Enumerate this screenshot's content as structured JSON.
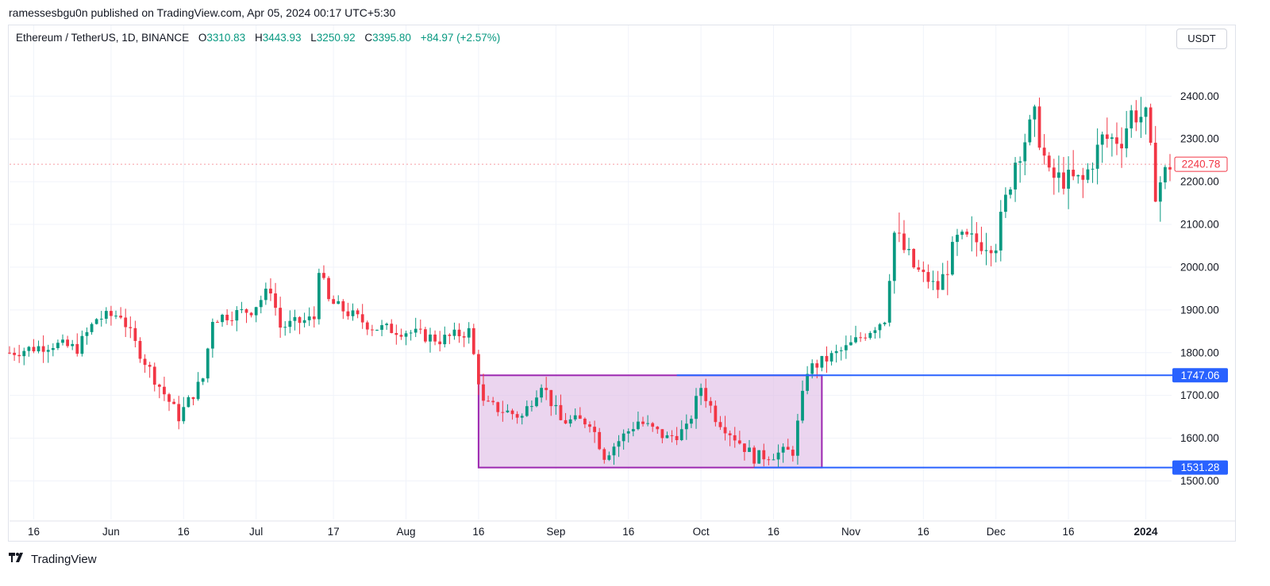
{
  "header": {
    "published_line": "ramessesbgu0n published on TradingView.com, Apr 05, 2024 00:17 UTC+5:30"
  },
  "legend": {
    "symbol": "Ethereum / TetherUS, 1D, BINANCE",
    "o_label": "O",
    "o_value": "3310.83",
    "h_label": "H",
    "h_value": "3443.93",
    "l_label": "L",
    "l_value": "3250.92",
    "c_label": "C",
    "c_value": "3395.80",
    "change": "+84.97 (+2.57%)",
    "up_color": "#089981"
  },
  "currency_button": {
    "label": "USDT"
  },
  "footer": {
    "brand": "TradingView",
    "logo_icon": "tradingview-logo-icon"
  },
  "colors": {
    "up": "#089981",
    "down": "#f23645",
    "box_fill": "#e1bee7",
    "box_border": "#9c27b0",
    "level_line": "#2962ff",
    "grid": "#f0f3fa"
  },
  "chart_data": {
    "type": "candlestick",
    "y_ticks": [
      "1500.00",
      "1600.00",
      "1700.00",
      "1800.00",
      "1900.00",
      "2000.00",
      "2100.00",
      "2200.00",
      "2300.00",
      "2400.00"
    ],
    "ylim": [
      1410,
      2510
    ],
    "x_ticks": [
      {
        "label": "16",
        "date": "2023-05-16"
      },
      {
        "label": "Jun",
        "date": "2023-06-01"
      },
      {
        "label": "16",
        "date": "2023-06-16"
      },
      {
        "label": "Jul",
        "date": "2023-07-01"
      },
      {
        "label": "17",
        "date": "2023-07-17"
      },
      {
        "label": "Aug",
        "date": "2023-08-01"
      },
      {
        "label": "16",
        "date": "2023-08-16"
      },
      {
        "label": "Sep",
        "date": "2023-09-01"
      },
      {
        "label": "16",
        "date": "2023-09-16"
      },
      {
        "label": "Oct",
        "date": "2023-10-01"
      },
      {
        "label": "16",
        "date": "2023-10-16"
      },
      {
        "label": "Nov",
        "date": "2023-11-01"
      },
      {
        "label": "16",
        "date": "2023-11-16"
      },
      {
        "label": "Dec",
        "date": "2023-12-01"
      },
      {
        "label": "16",
        "date": "2023-12-16"
      },
      {
        "label": "2024",
        "date": "2024-01-01",
        "bold": true
      }
    ],
    "start_date": "2023-05-11",
    "end_date": "2024-01-06",
    "key_points": [
      [
        "2023-05-11",
        1800
      ],
      [
        "2023-05-20",
        1820
      ],
      [
        "2023-05-25",
        1810
      ],
      [
        "2023-05-29",
        1880
      ],
      [
        "2023-06-03",
        1890
      ],
      [
        "2023-06-06",
        1820
      ],
      [
        "2023-06-10",
        1740
      ],
      [
        "2023-06-15",
        1650
      ],
      [
        "2023-06-20",
        1740
      ],
      [
        "2023-06-22",
        1880
      ],
      [
        "2023-06-30",
        1900
      ],
      [
        "2023-07-04",
        1950
      ],
      [
        "2023-07-06",
        1860
      ],
      [
        "2023-07-13",
        1880
      ],
      [
        "2023-07-14",
        2000
      ],
      [
        "2023-07-16",
        1920
      ],
      [
        "2023-07-25",
        1860
      ],
      [
        "2023-08-01",
        1850
      ],
      [
        "2023-08-08",
        1830
      ],
      [
        "2023-08-14",
        1850
      ],
      [
        "2023-08-17",
        1680
      ],
      [
        "2023-08-25",
        1650
      ],
      [
        "2023-08-29",
        1730
      ],
      [
        "2023-09-02",
        1640
      ],
      [
        "2023-09-08",
        1640
      ],
      [
        "2023-09-11",
        1560
      ],
      [
        "2023-09-18",
        1640
      ],
      [
        "2023-09-24",
        1600
      ],
      [
        "2023-09-28",
        1620
      ],
      [
        "2023-10-01",
        1720
      ],
      [
        "2023-10-04",
        1650
      ],
      [
        "2023-10-12",
        1555
      ],
      [
        "2023-10-20",
        1570
      ],
      [
        "2023-10-23",
        1760
      ],
      [
        "2023-10-31",
        1810
      ],
      [
        "2023-11-08",
        1880
      ],
      [
        "2023-11-10",
        2080
      ],
      [
        "2023-11-14",
        2000
      ],
      [
        "2023-11-19",
        1950
      ],
      [
        "2023-11-23",
        2060
      ],
      [
        "2023-12-01",
        2060
      ],
      [
        "2023-12-05",
        2250
      ],
      [
        "2023-12-09",
        2350
      ],
      [
        "2023-12-12",
        2210
      ],
      [
        "2023-12-19",
        2200
      ],
      [
        "2023-12-23",
        2300
      ],
      [
        "2023-12-27",
        2300
      ],
      [
        "2023-12-29",
        2360
      ],
      [
        "2024-01-01",
        2350
      ],
      [
        "2024-01-03",
        2180
      ],
      [
        "2024-01-06",
        2240
      ]
    ],
    "rectangle": {
      "start_date": "2023-08-16",
      "end_date": "2023-10-26",
      "top": 1747.06,
      "bottom": 1531.28
    },
    "horizontal_lines": [
      {
        "value": 1747.06,
        "label": "1747.06",
        "start_date": "2023-09-26"
      },
      {
        "value": 1531.28,
        "label": "1531.28",
        "start_date": "2023-10-12"
      }
    ],
    "last_price": {
      "value": 2240.78,
      "label": "2240.78"
    }
  }
}
